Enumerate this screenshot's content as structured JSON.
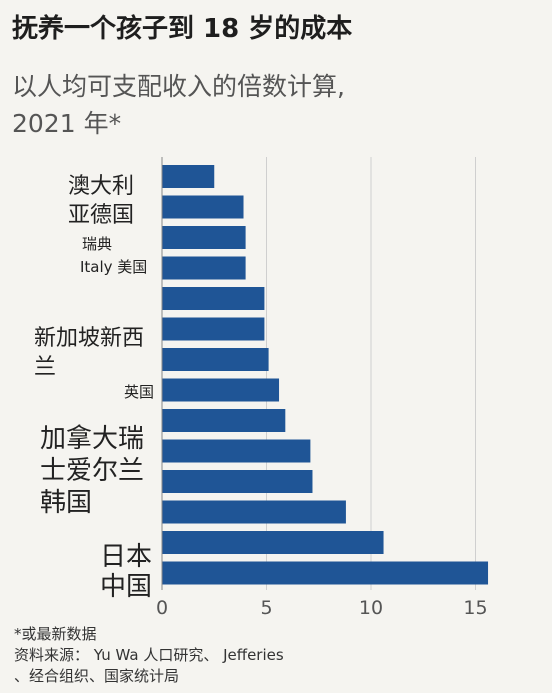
{
  "title": "抚养一个孩子到 18 岁的成本",
  "subtitle_line1": "以人均可支配收入的倍数计算,",
  "subtitle_line2": "2021 年*",
  "chart_data": {
    "type": "bar",
    "orientation": "horizontal",
    "values": [
      2.5,
      3.9,
      4.0,
      4.0,
      4.9,
      4.9,
      5.1,
      5.6,
      5.9,
      7.1,
      7.2,
      8.8,
      10.6,
      15.6
    ],
    "x_ticks": [
      0,
      5,
      10,
      15
    ],
    "xlim": [
      0,
      16
    ],
    "bar_color": "#1f5596",
    "grid": true
  },
  "labels": {
    "aus": "澳大利",
    "de": "亚德国",
    "ruidian": "瑞典",
    "italy_us": "Italy 美国",
    "nz1": "新加坡新西",
    "nz2": "兰",
    "uk": "英国",
    "ca1": "加拿大瑞",
    "ca2": "士爱尔兰",
    "kr": "韩国",
    "jp": "日本",
    "cn": "中国"
  },
  "footnote": {
    "line1": "*或最新数据",
    "line2": "资料来源：  Yu Wa 人口研究、 Jefferies",
    "line3": "、经合组织、国家统计局"
  }
}
